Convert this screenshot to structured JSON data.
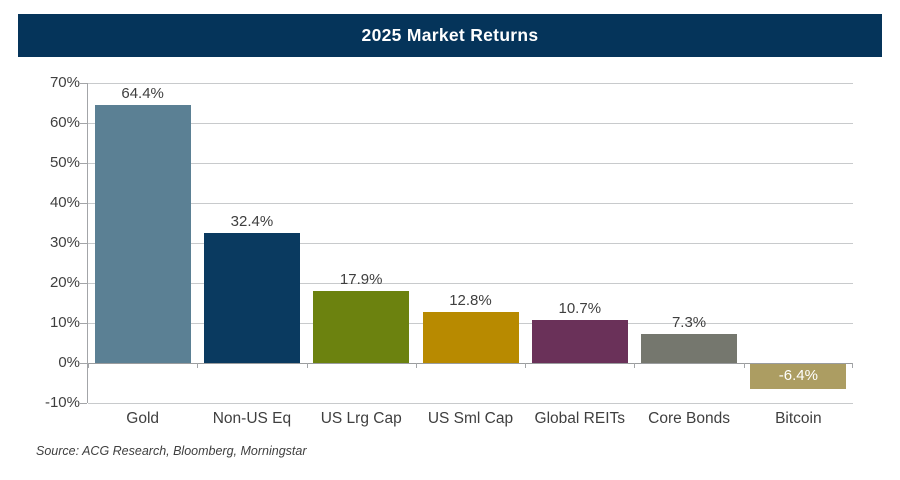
{
  "header": {
    "title": "2025 Market Returns"
  },
  "source_note": "Source: ACG Research, Bloomberg, Morningstar",
  "colors": {
    "title_bg": "#05345A",
    "title_text": "#FFFFFF",
    "grid": "#C8CACC",
    "zero_line": "#9A9C9E",
    "axis": "#A3A5A8",
    "tick": "#A3A5A8",
    "label_text": "#3F3F3F",
    "negative_label_text": "#FFFFFF"
  },
  "chart_data": {
    "type": "bar",
    "title": "2025 Market Returns",
    "categories": [
      "Gold",
      "Non-US Eq",
      "US Lrg Cap",
      "US Sml Cap",
      "Global REITs",
      "Core Bonds",
      "Bitcoin"
    ],
    "values": [
      64.4,
      32.4,
      17.9,
      12.8,
      10.7,
      7.3,
      -6.4
    ],
    "data_labels": [
      "64.4%",
      "32.4%",
      "17.9%",
      "12.8%",
      "10.7%",
      "7.3%",
      "-6.4%"
    ],
    "bar_colors": [
      "#5B8094",
      "#0A3A60",
      "#6C820F",
      "#B88A00",
      "#6A3159",
      "#75776E",
      "#AC9D62"
    ],
    "xlabel": "",
    "ylabel": "",
    "ylim": [
      -10,
      70
    ],
    "ytick_step": 10,
    "ytick_labels": [
      "70%",
      "60%",
      "50%",
      "40%",
      "30%",
      "20%",
      "10%",
      "0%",
      "-10%"
    ],
    "grid": true,
    "legend": false,
    "source": "Source: ACG Research, Bloomberg, Morningstar"
  }
}
